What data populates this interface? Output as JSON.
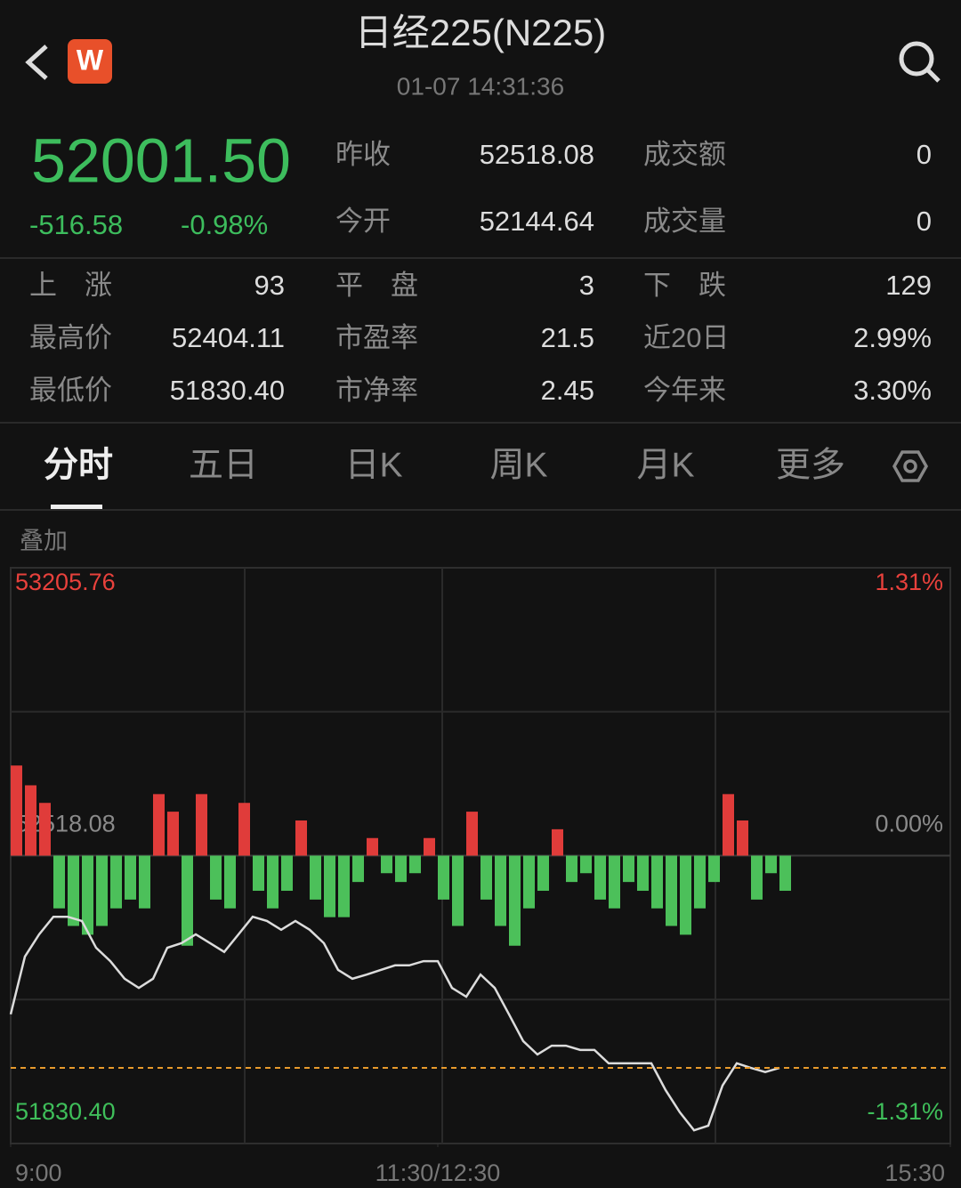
{
  "header": {
    "logo": "W",
    "title": "日经225(N225)",
    "time": "01-07 14:31:36"
  },
  "quote": {
    "price": "52001.50",
    "change": "-516.58",
    "change_pct": "-0.98%"
  },
  "summary": [
    [
      {
        "label": "昨收",
        "value": "52518.08"
      },
      {
        "label": "成交额",
        "value": "0"
      }
    ],
    [
      {
        "label": "今开",
        "value": "52144.64"
      },
      {
        "label": "成交量",
        "value": "0"
      }
    ]
  ],
  "stats": [
    [
      {
        "label": "上　涨",
        "value": "93"
      },
      {
        "label": "平　盘",
        "value": "3"
      },
      {
        "label": "下　跌",
        "value": "129"
      }
    ],
    [
      {
        "label": "最高价",
        "value": "52404.11"
      },
      {
        "label": "市盈率",
        "value": "21.5"
      },
      {
        "label": "近20日",
        "value": "2.99%"
      }
    ],
    [
      {
        "label": "最低价",
        "value": "51830.40"
      },
      {
        "label": "市净率",
        "value": "2.45"
      },
      {
        "label": "今年来",
        "value": "3.30%"
      }
    ]
  ],
  "tabs": [
    "分时",
    "五日",
    "日K",
    "周K",
    "月K",
    "更多"
  ],
  "overlay": "叠加",
  "chart_data": {
    "type": "line",
    "xlim": [
      0,
      330
    ],
    "xticks": [
      {
        "value": 0,
        "label": "9:00"
      },
      {
        "value": 150,
        "label": "11:30/12:30"
      },
      {
        "value": 330,
        "label": "15:30"
      }
    ],
    "ylim": [
      51830.4,
      53205.76
    ],
    "yticks": [
      53205.76,
      52518.08,
      {
        "value": 51830.4,
        "label": "51830.40"
      }
    ],
    "ytick_colors": [
      "#e8413c",
      "#8a8a8a",
      "#3fbf5a"
    ],
    "y2lim": [
      -1.31,
      1.31
    ],
    "y2ticks": [
      {
        "value": 1.31,
        "label": "1.31%"
      },
      {
        "value": 0,
        "label": "0.00%"
      },
      {
        "value": -1.31,
        "label": "-1.31%"
      }
    ],
    "y2tick_colors": [
      "#e8413c",
      "#8a8a8a",
      "#3fbf5a"
    ],
    "x": [
      0,
      5,
      10,
      15,
      20,
      25,
      30,
      35,
      40,
      45,
      50,
      55,
      60,
      65,
      70,
      75,
      80,
      85,
      90,
      95,
      100,
      105,
      110,
      115,
      120,
      125,
      130,
      135,
      140,
      145,
      150,
      155,
      160,
      165,
      170,
      175,
      180,
      185,
      190,
      195,
      200,
      205,
      210,
      215,
      220,
      225,
      230,
      235,
      240,
      245,
      250,
      255,
      260,
      265,
      270
    ],
    "series": [
      {
        "type": "line",
        "color": "#dcdcdc",
        "last_color": "#e89a2c",
        "values": [
          52139,
          52277,
          52330,
          52372,
          52372,
          52362,
          52298,
          52266,
          52224,
          52202,
          52224,
          52298,
          52309,
          52330,
          52309,
          52288,
          52330,
          52372,
          52362,
          52341,
          52362,
          52341,
          52309,
          52245,
          52224,
          52234,
          52245,
          52256,
          52256,
          52266,
          52266,
          52202,
          52181,
          52234,
          52202,
          52139,
          52075,
          52043,
          52064,
          52064,
          52054,
          52054,
          52022,
          52022,
          52022,
          52022,
          51958,
          51905,
          51862,
          51873,
          51969,
          52022,
          52011,
          52001,
          52011
        ]
      },
      {
        "type": "bar",
        "axis": "y2",
        "up_color": "#e03c3a",
        "down_color": "#4cc05a",
        "values": [
          0.41,
          0.32,
          0.24,
          -0.24,
          -0.32,
          -0.36,
          -0.32,
          -0.24,
          -0.2,
          -0.24,
          0.28,
          0.2,
          -0.41,
          0.28,
          -0.2,
          -0.24,
          0.24,
          -0.16,
          -0.24,
          -0.16,
          0.16,
          -0.2,
          -0.28,
          -0.28,
          -0.12,
          0.08,
          -0.08,
          -0.12,
          -0.08,
          0.08,
          -0.2,
          -0.32,
          0.2,
          -0.2,
          -0.32,
          -0.41,
          -0.24,
          -0.16,
          0.12,
          -0.12,
          -0.08,
          -0.2,
          -0.24,
          -0.12,
          -0.16,
          -0.24,
          -0.32,
          -0.36,
          -0.24,
          -0.12,
          0.28,
          0.16,
          -0.2,
          -0.08,
          -0.16
        ]
      }
    ]
  }
}
